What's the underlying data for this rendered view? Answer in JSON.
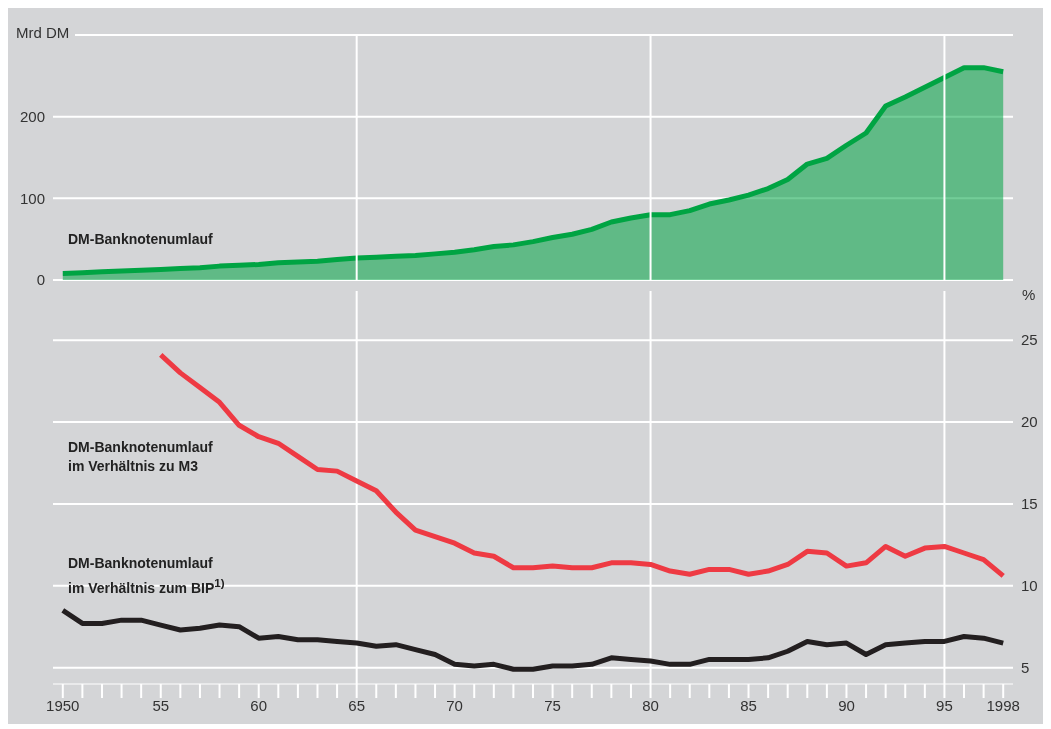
{
  "chart_data": [
    {
      "type": "area",
      "ylabel": "Mrd DM",
      "x": [
        1950,
        1951,
        1952,
        1953,
        1954,
        1955,
        1956,
        1957,
        1958,
        1959,
        1960,
        1961,
        1962,
        1963,
        1964,
        1965,
        1966,
        1967,
        1968,
        1969,
        1970,
        1971,
        1972,
        1973,
        1974,
        1975,
        1976,
        1977,
        1978,
        1979,
        1980,
        1981,
        1982,
        1983,
        1984,
        1985,
        1986,
        1987,
        1988,
        1989,
        1990,
        1991,
        1992,
        1993,
        1994,
        1995,
        1996,
        1997,
        1998
      ],
      "series": [
        {
          "name": "DM-Banknotenumlauf",
          "color": "#00a443",
          "values": [
            8,
            9,
            10,
            11,
            12,
            13,
            14,
            15,
            17,
            18,
            19,
            21,
            22,
            23,
            25,
            27,
            28,
            29,
            30,
            32,
            34,
            37,
            41,
            43,
            47,
            52,
            56,
            62,
            71,
            76,
            80,
            80,
            85,
            93,
            98,
            104,
            112,
            123,
            142,
            149,
            165,
            180,
            213,
            224,
            236,
            248,
            260,
            260,
            255
          ]
        }
      ],
      "xlim": [
        1949.5,
        1998.5
      ],
      "ylim": [
        0,
        300
      ],
      "yticks": [
        0,
        100,
        200,
        {
          "value": 300,
          "label": null
        }
      ],
      "grid": "y",
      "tick_labels": "y",
      "ref_lines": [
        {
          "axis": "x",
          "value": 1965,
          "color": "#ffffff"
        },
        {
          "axis": "x",
          "value": 1980,
          "color": "#ffffff"
        },
        {
          "axis": "x",
          "value": 1995,
          "color": "#ffffff"
        }
      ]
    },
    {
      "type": "line",
      "y2label": "%",
      "x": [
        1950,
        1951,
        1952,
        1953,
        1954,
        1955,
        1956,
        1957,
        1958,
        1959,
        1960,
        1961,
        1962,
        1963,
        1964,
        1965,
        1966,
        1967,
        1968,
        1969,
        1970,
        1971,
        1972,
        1973,
        1974,
        1975,
        1976,
        1977,
        1978,
        1979,
        1980,
        1981,
        1982,
        1983,
        1984,
        1985,
        1986,
        1987,
        1988,
        1989,
        1990,
        1991,
        1992,
        1993,
        1994,
        1995,
        1996,
        1997,
        1998
      ],
      "series": [
        {
          "name": "DM-Banknotenumlauf im Verhältnis zu M3",
          "color": "#ee3a43",
          "axis": "y2",
          "x": [
            1955,
            1956,
            1957,
            1958,
            1959,
            1960,
            1961,
            1962,
            1963,
            1964,
            1965,
            1966,
            1967,
            1968,
            1969,
            1970,
            1971,
            1972,
            1973,
            1974,
            1975,
            1976,
            1977,
            1978,
            1979,
            1980,
            1981,
            1982,
            1983,
            1984,
            1985,
            1986,
            1987,
            1988,
            1989,
            1990,
            1991,
            1992,
            1993,
            1994,
            1995,
            1996,
            1997,
            1998
          ],
          "values": [
            24.1,
            23.0,
            22.1,
            21.2,
            19.8,
            19.1,
            18.7,
            17.9,
            17.1,
            17.0,
            16.4,
            15.8,
            14.5,
            13.4,
            13.0,
            12.6,
            12.0,
            11.8,
            11.1,
            11.1,
            11.2,
            11.1,
            11.1,
            11.4,
            11.4,
            11.3,
            10.9,
            10.7,
            11.0,
            11.0,
            10.7,
            10.9,
            11.3,
            12.1,
            12.0,
            11.2,
            11.4,
            12.4,
            11.8,
            12.3,
            12.4,
            12.0,
            11.6,
            10.6
          ]
        },
        {
          "name": "DM-Banknotenumlauf im Verhältnis zum BIP$^{1)}$",
          "color": "#231f20",
          "axis": "y2",
          "values": [
            8.5,
            7.7,
            7.7,
            7.9,
            7.9,
            7.6,
            7.3,
            7.4,
            7.6,
            7.5,
            6.8,
            6.9,
            6.7,
            6.7,
            6.6,
            6.5,
            6.3,
            6.4,
            6.1,
            5.8,
            5.2,
            5.1,
            5.2,
            4.9,
            4.9,
            5.1,
            5.1,
            5.2,
            5.6,
            5.5,
            5.4,
            5.2,
            5.2,
            5.5,
            5.5,
            5.5,
            5.6,
            6.0,
            6.6,
            6.4,
            6.5,
            5.8,
            6.4,
            6.5,
            6.6,
            6.6,
            6.9,
            6.8,
            6.5
          ]
        }
      ],
      "xlim": [
        1949.5,
        1998.5
      ],
      "xticks": [
        {
          "value": 1950,
          "label": "1950"
        },
        {
          "value": 1951,
          "label": null
        },
        {
          "value": 1952,
          "label": null
        },
        {
          "value": 1953,
          "label": null
        },
        {
          "value": 1954,
          "label": null
        },
        {
          "value": 1955,
          "label": "55"
        },
        {
          "value": 1956,
          "label": null
        },
        {
          "value": 1957,
          "label": null
        },
        {
          "value": 1958,
          "label": null
        },
        {
          "value": 1959,
          "label": null
        },
        {
          "value": 1960,
          "label": "60"
        },
        {
          "value": 1961,
          "label": null
        },
        {
          "value": 1962,
          "label": null
        },
        {
          "value": 1963,
          "label": null
        },
        {
          "value": 1964,
          "label": null
        },
        {
          "value": 1965,
          "label": "65"
        },
        {
          "value": 1966,
          "label": null
        },
        {
          "value": 1967,
          "label": null
        },
        {
          "value": 1968,
          "label": null
        },
        {
          "value": 1969,
          "label": null
        },
        {
          "value": 1970,
          "label": "70"
        },
        {
          "value": 1971,
          "label": null
        },
        {
          "value": 1972,
          "label": null
        },
        {
          "value": 1973,
          "label": null
        },
        {
          "value": 1974,
          "label": null
        },
        {
          "value": 1975,
          "label": "75"
        },
        {
          "value": 1976,
          "label": null
        },
        {
          "value": 1977,
          "label": null
        },
        {
          "value": 1978,
          "label": null
        },
        {
          "value": 1979,
          "label": null
        },
        {
          "value": 1980,
          "label": "80"
        },
        {
          "value": 1981,
          "label": null
        },
        {
          "value": 1982,
          "label": null
        },
        {
          "value": 1983,
          "label": null
        },
        {
          "value": 1984,
          "label": null
        },
        {
          "value": 1985,
          "label": "85"
        },
        {
          "value": 1986,
          "label": null
        },
        {
          "value": 1987,
          "label": null
        },
        {
          "value": 1988,
          "label": null
        },
        {
          "value": 1989,
          "label": null
        },
        {
          "value": 1990,
          "label": "90"
        },
        {
          "value": 1991,
          "label": null
        },
        {
          "value": 1992,
          "label": null
        },
        {
          "value": 1993,
          "label": null
        },
        {
          "value": 1994,
          "label": null
        },
        {
          "value": 1995,
          "label": "95"
        },
        {
          "value": 1996,
          "label": null
        },
        {
          "value": 1997,
          "label": null
        },
        {
          "value": 1998,
          "label": "1998"
        }
      ],
      "y2lim": [
        4,
        28
      ],
      "y2ticks": [
        5,
        10,
        15,
        20,
        25
      ],
      "grid": "y",
      "ref_lines": [
        {
          "axis": "x",
          "value": 1965,
          "color": "#ffffff"
        },
        {
          "axis": "x",
          "value": 1980,
          "color": "#ffffff"
        },
        {
          "axis": "x",
          "value": 1995,
          "color": "#ffffff"
        }
      ]
    }
  ]
}
